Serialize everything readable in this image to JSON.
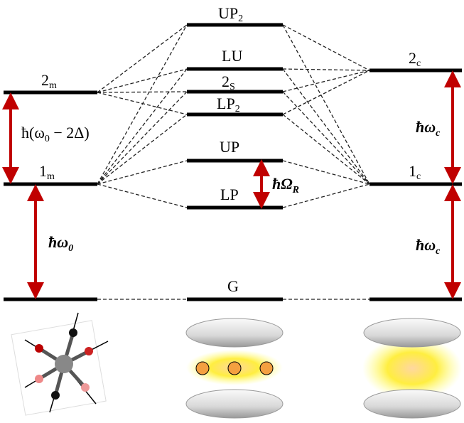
{
  "levels": {
    "left": [
      {
        "label": "2",
        "sub": "m"
      },
      {
        "label": "1",
        "sub": "m"
      }
    ],
    "middle": [
      {
        "label": "UP",
        "sub": "2"
      },
      {
        "label": "LU"
      },
      {
        "label": "2",
        "sub": "S"
      },
      {
        "label": "LP",
        "sub": "2"
      },
      {
        "label": "UP"
      },
      {
        "label": "LP"
      },
      {
        "label": "G"
      }
    ],
    "right": [
      {
        "label": "2",
        "sub": "c"
      },
      {
        "label": "1",
        "sub": "c"
      }
    ]
  },
  "transitions": [
    {
      "pre": "ħ(ω",
      "sub": "0",
      "post": " − 2Δ)"
    },
    {
      "pre": "ħω",
      "sub": "0"
    },
    {
      "pre": "ħΩ",
      "sub": "R"
    },
    {
      "pre": "ħω",
      "sub": "c"
    },
    {
      "pre": "ħω",
      "sub": "c"
    }
  ]
}
